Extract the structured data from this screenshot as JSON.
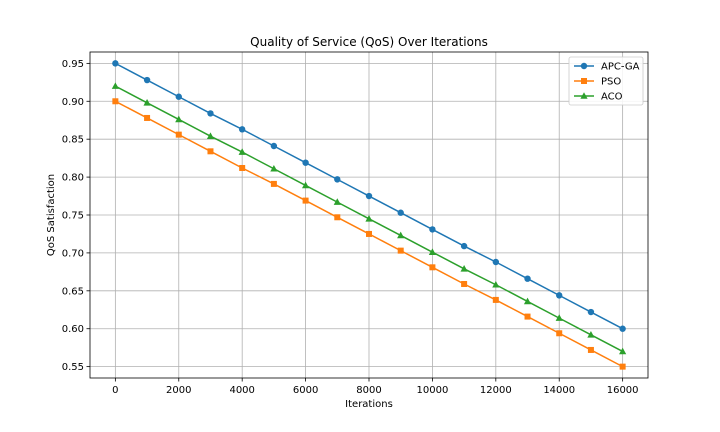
{
  "chart_data": {
    "type": "line",
    "title": "Quality of Service (QoS) Over Iterations",
    "xlabel": "Iterations",
    "ylabel": "QoS Satisfaction",
    "xlim": [
      -800,
      16800
    ],
    "ylim": [
      0.535,
      0.965
    ],
    "x_ticks": [
      0,
      2000,
      4000,
      6000,
      8000,
      10000,
      12000,
      14000,
      16000
    ],
    "y_ticks": [
      0.55,
      0.6,
      0.65,
      0.7,
      0.75,
      0.8,
      0.85,
      0.9,
      0.95
    ],
    "grid": true,
    "legend_position": "top-right",
    "x": [
      0,
      1000,
      2000,
      3000,
      4000,
      5000,
      6000,
      7000,
      8000,
      9000,
      10000,
      11000,
      12000,
      13000,
      14000,
      15000,
      16000
    ],
    "series": [
      {
        "name": "APC-GA",
        "color": "#1f77b4",
        "marker": "circle",
        "values": [
          0.95,
          0.928,
          0.906,
          0.884,
          0.863,
          0.841,
          0.819,
          0.797,
          0.775,
          0.753,
          0.731,
          0.709,
          0.688,
          0.666,
          0.644,
          0.622,
          0.6
        ]
      },
      {
        "name": "PSO",
        "color": "#ff7f0e",
        "marker": "square",
        "values": [
          0.9,
          0.878,
          0.856,
          0.834,
          0.812,
          0.791,
          0.769,
          0.747,
          0.725,
          0.703,
          0.681,
          0.659,
          0.638,
          0.616,
          0.594,
          0.572,
          0.55
        ]
      },
      {
        "name": "ACO",
        "color": "#2ca02c",
        "marker": "triangle",
        "values": [
          0.92,
          0.898,
          0.876,
          0.854,
          0.833,
          0.811,
          0.789,
          0.767,
          0.745,
          0.723,
          0.701,
          0.679,
          0.658,
          0.636,
          0.614,
          0.592,
          0.57
        ]
      }
    ]
  }
}
